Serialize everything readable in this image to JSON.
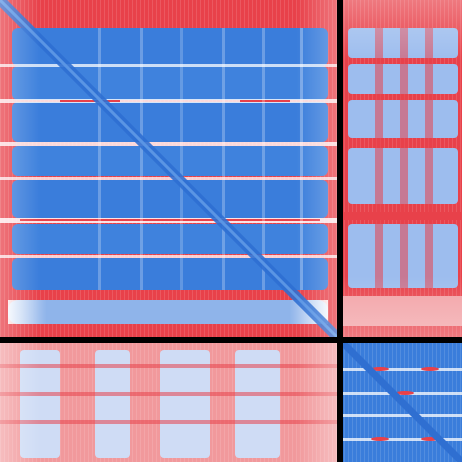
{
  "palette": {
    "low": "#e8414a",
    "mid": "#ffffff",
    "high": "#3a7ddb",
    "separator": "#000000"
  },
  "matrix": {
    "split_fraction": 0.732,
    "panels": [
      {
        "id": "top-left",
        "pattern": "main",
        "band_count": 7,
        "diagonal": true
      },
      {
        "id": "top-right",
        "pattern": "off-diag",
        "band_count": 7,
        "column_count": 6
      },
      {
        "id": "bottom-left",
        "pattern": "off-diag-transposed",
        "band_count": 6,
        "column_count": 6
      },
      {
        "id": "bottom-right",
        "pattern": "small",
        "band_count": 5,
        "diagonal": true
      }
    ]
  }
}
